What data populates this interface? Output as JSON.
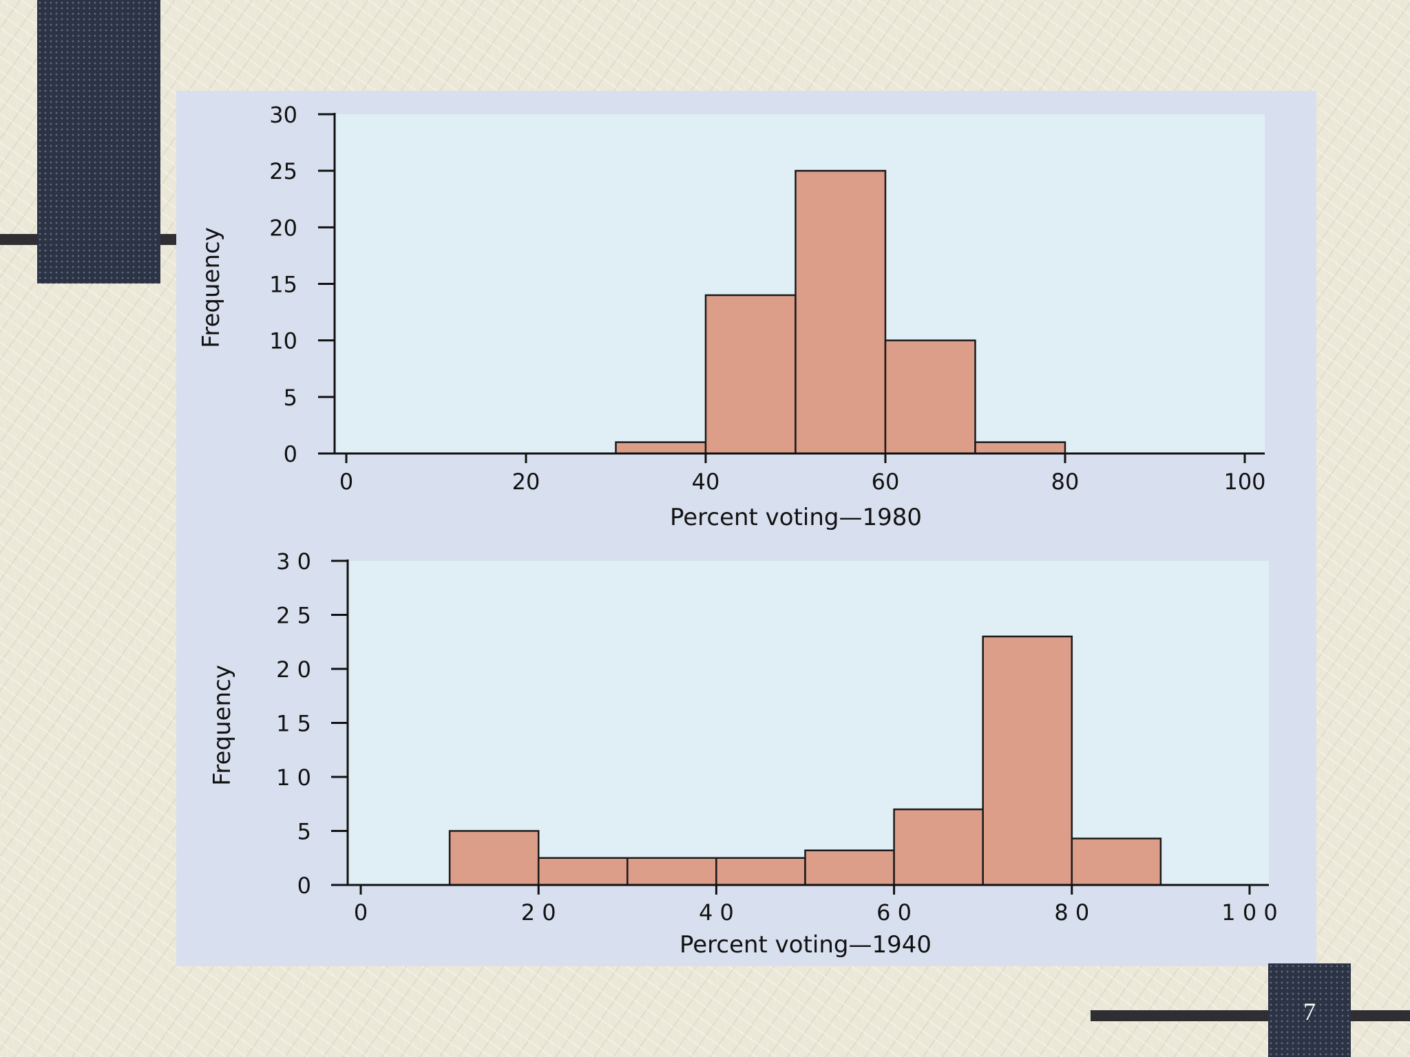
{
  "slide": {
    "page_number": "7",
    "colors": {
      "background": "#ebe8d8",
      "panel": "#d8e0ef",
      "plot_area": "#e0eff6",
      "bar_fill": "#dc9d89",
      "deco": "#2c3344"
    }
  },
  "chart_data": [
    {
      "type": "bar",
      "title": "",
      "xlabel": "Percent voting—1980",
      "ylabel": "Frequency",
      "xlim": [
        0,
        100
      ],
      "ylim": [
        0,
        30
      ],
      "x_ticks": [
        "0",
        "20",
        "40",
        "60",
        "80",
        "100"
      ],
      "x_tick_values": [
        0,
        20,
        40,
        60,
        80,
        100
      ],
      "y_ticks": [
        "0",
        "5",
        "10",
        "15",
        "20",
        "25",
        "30"
      ],
      "y_tick_values": [
        0,
        5,
        10,
        15,
        20,
        25,
        30
      ],
      "bins": [
        [
          30,
          40
        ],
        [
          40,
          50
        ],
        [
          50,
          60
        ],
        [
          60,
          70
        ],
        [
          70,
          80
        ]
      ],
      "values": [
        1,
        14,
        25,
        10,
        1
      ]
    },
    {
      "type": "bar",
      "title": "",
      "xlabel": "Percent voting—1940",
      "ylabel": "Frequency",
      "xlim": [
        0,
        100
      ],
      "ylim": [
        0,
        30
      ],
      "x_ticks": [
        "0",
        "2 0",
        "4 0",
        "6 0",
        "8 0",
        "1 0 0"
      ],
      "x_tick_values": [
        0,
        20,
        40,
        60,
        80,
        100
      ],
      "y_ticks": [
        "0",
        "5",
        "1 0",
        "1 5",
        "2 0",
        "2 5",
        "3 0"
      ],
      "y_tick_values": [
        0,
        5,
        10,
        15,
        20,
        25,
        30
      ],
      "bins": [
        [
          10,
          20
        ],
        [
          20,
          30
        ],
        [
          30,
          40
        ],
        [
          40,
          50
        ],
        [
          50,
          60
        ],
        [
          60,
          70
        ],
        [
          70,
          80
        ],
        [
          80,
          90
        ]
      ],
      "values": [
        5,
        2.5,
        2.5,
        2.5,
        3.2,
        7,
        23,
        4.3
      ]
    }
  ]
}
